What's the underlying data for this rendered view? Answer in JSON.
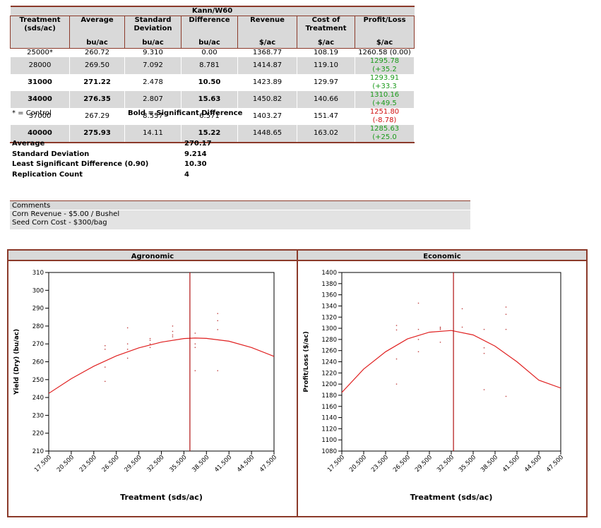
{
  "table": {
    "title": "Kann/W60",
    "headers": [
      {
        "line1": "Treatment",
        "line2": "(sds/ac)",
        "unit": ""
      },
      {
        "line1": "Average",
        "line2": "",
        "unit": "bu/ac"
      },
      {
        "line1": "Standard",
        "line2": "Deviation",
        "unit": "bu/ac"
      },
      {
        "line1": "Difference",
        "line2": "",
        "unit": "bu/ac"
      },
      {
        "line1": "Revenue",
        "line2": "",
        "unit": "$/ac"
      },
      {
        "line1": "Cost of",
        "line2": "Treatment",
        "unit": "$/ac"
      },
      {
        "line1": "Profit/Loss",
        "line2": "",
        "unit": "$/ac"
      }
    ],
    "rows": [
      {
        "treatment": "25000*",
        "average": "260.72",
        "sd": "9.310",
        "difference": "0.00",
        "revenue": "1368.77",
        "cost": "108.19",
        "profit": "1260.58 (0.00)",
        "profit_color": "black",
        "significant": false
      },
      {
        "treatment": "28000",
        "average": "269.50",
        "sd": "7.092",
        "difference": "8.781",
        "revenue": "1414.87",
        "cost": "119.10",
        "profit": "1295.78 (+35.2",
        "profit_color": "green",
        "significant": false
      },
      {
        "treatment": "31000",
        "average": "271.22",
        "sd": "2.478",
        "difference": "10.50",
        "revenue": "1423.89",
        "cost": "129.97",
        "profit": "1293.91 (+33.3",
        "profit_color": "green",
        "significant": true
      },
      {
        "treatment": "34000",
        "average": "276.35",
        "sd": "2.807",
        "difference": "15.63",
        "revenue": "1450.82",
        "cost": "140.66",
        "profit": "1310.16 (+49.5",
        "profit_color": "green",
        "significant": true
      },
      {
        "treatment": "37000",
        "average": "267.29",
        "sd": "8.557",
        "difference": "6.571",
        "revenue": "1403.27",
        "cost": "151.47",
        "profit": "1251.80 (-8.78)",
        "profit_color": "red",
        "significant": false
      },
      {
        "treatment": "40000",
        "average": "275.93",
        "sd": "14.11",
        "difference": "15.22",
        "revenue": "1448.65",
        "cost": "163.02",
        "profit": "1285.63 (+25.0",
        "profit_color": "green",
        "significant": true
      }
    ],
    "footnote_control": "* = Control",
    "footnote_bold": "Bold = Significant Difference"
  },
  "stats": [
    {
      "label": "Average",
      "value": "270.17"
    },
    {
      "label": "Standard Deviation",
      "value": "9.214"
    },
    {
      "label": "Least Significant Difference (0.90)",
      "value": "10.30"
    },
    {
      "label": "Replication Count",
      "value": "4"
    }
  ],
  "comments": {
    "title": "Comments",
    "lines": [
      "Corn Revenue -  $5.00 / Bushel",
      "Seed Corn Cost  -  $300/bag"
    ]
  },
  "colors": {
    "border": "#8b3a2a",
    "curve": "#e02020",
    "header_bg": "#d9d9d9",
    "green": "#1a9a1a",
    "red": "#d01010"
  },
  "chart_data": [
    {
      "type": "scatter",
      "title": "Agronomic",
      "xlabel": "Treatment (sds/ac)",
      "ylabel": "Yield (Dry) (bu/ac)",
      "xlim": [
        17500,
        47500
      ],
      "ylim": [
        210,
        310
      ],
      "xticks": [
        17500,
        20500,
        23500,
        26500,
        29500,
        32500,
        35500,
        38500,
        41500,
        44500,
        47500
      ],
      "xtick_labels": [
        "17.500",
        "20.500",
        "23.500",
        "26.500",
        "29.500",
        "32.500",
        "35.500",
        "38.500",
        "41.500",
        "44.500",
        "47.500"
      ],
      "yticks": [
        210,
        220,
        230,
        240,
        250,
        260,
        270,
        280,
        290,
        300,
        310
      ],
      "points": [
        [
          25000,
          249
        ],
        [
          25000,
          257
        ],
        [
          25000,
          267
        ],
        [
          25000,
          269
        ],
        [
          28000,
          262
        ],
        [
          28000,
          267
        ],
        [
          28000,
          270
        ],
        [
          28000,
          279
        ],
        [
          31000,
          268
        ],
        [
          31000,
          270
        ],
        [
          31000,
          272
        ],
        [
          31000,
          273
        ],
        [
          34000,
          274
        ],
        [
          34000,
          275
        ],
        [
          34000,
          277
        ],
        [
          34000,
          280
        ],
        [
          37000,
          255
        ],
        [
          37000,
          268
        ],
        [
          37000,
          270
        ],
        [
          37000,
          276
        ],
        [
          40000,
          255
        ],
        [
          40000,
          278
        ],
        [
          40000,
          283
        ],
        [
          40000,
          287
        ]
      ],
      "curve_x": [
        17500,
        20500,
        23500,
        26500,
        29500,
        32500,
        35500,
        37000,
        38500,
        41500,
        44500,
        47500
      ],
      "curve_y": [
        242.3,
        250.5,
        257.5,
        263.3,
        267.8,
        271.0,
        273.0,
        273.3,
        273.1,
        271.5,
        268.0,
        263.0
      ],
      "optimum_x": 36300
    },
    {
      "type": "scatter",
      "title": "Economic",
      "xlabel": "Treatment (sds/ac)",
      "ylabel": "Profit/Loss ($/ac)",
      "xlim": [
        17500,
        47500
      ],
      "ylim": [
        1080,
        1400
      ],
      "xticks": [
        17500,
        20500,
        23500,
        26500,
        29500,
        32500,
        35500,
        38500,
        41500,
        44500,
        47500
      ],
      "xtick_labels": [
        "17.500",
        "20.500",
        "23.500",
        "26.500",
        "29.500",
        "32.500",
        "35.500",
        "38.500",
        "41.500",
        "44.500",
        "47.500"
      ],
      "yticks": [
        1080,
        1100,
        1120,
        1140,
        1160,
        1180,
        1200,
        1220,
        1240,
        1260,
        1280,
        1300,
        1320,
        1340,
        1360,
        1380,
        1400
      ],
      "points": [
        [
          25000,
          1200
        ],
        [
          25000,
          1245
        ],
        [
          25000,
          1297
        ],
        [
          25000,
          1305
        ],
        [
          28000,
          1258
        ],
        [
          28000,
          1280
        ],
        [
          28000,
          1298
        ],
        [
          28000,
          1345
        ],
        [
          31000,
          1275
        ],
        [
          31000,
          1298
        ],
        [
          31000,
          1300
        ],
        [
          31000,
          1302
        ],
        [
          34000,
          1302
        ],
        [
          34000,
          1335
        ],
        [
          37000,
          1190
        ],
        [
          37000,
          1255
        ],
        [
          37000,
          1265
        ],
        [
          37000,
          1298
        ],
        [
          40000,
          1178
        ],
        [
          40000,
          1298
        ],
        [
          40000,
          1325
        ],
        [
          40000,
          1338
        ]
      ],
      "curve_x": [
        17500,
        20500,
        23500,
        26500,
        29500,
        32500,
        35500,
        38500,
        41500,
        44500,
        47500
      ],
      "curve_y": [
        1185,
        1227,
        1258,
        1281,
        1293,
        1296,
        1288,
        1268,
        1240,
        1207,
        1193
      ],
      "optimum_x": 32800
    }
  ]
}
